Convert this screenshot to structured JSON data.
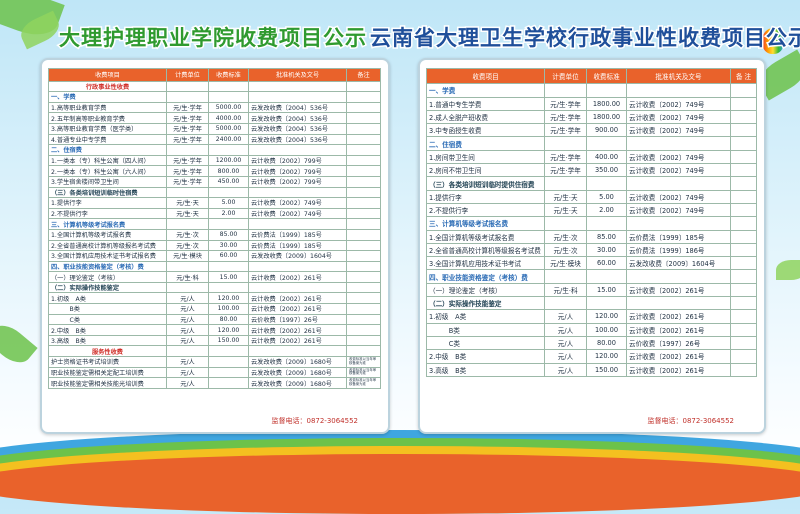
{
  "boards": [
    {
      "title": "大理护理职业学院收费项目公示",
      "header": [
        "收费项目",
        "计费单位",
        "收费标准",
        "批准机关及文号",
        "备注"
      ],
      "rows": [
        {
          "section": "行政事业性收费",
          "color": "#d0302a"
        },
        {
          "section": "一、学费",
          "color": "#2a6bb5"
        },
        {
          "item": "1.高等职业教育学费",
          "unit": "元/生·学年",
          "fee": "5000.00",
          "approval": "云发改收费〔2004〕536号"
        },
        {
          "item": "2.五年制高等职业教育学费",
          "unit": "元/生·学年",
          "fee": "4000.00",
          "approval": "云发改收费〔2004〕536号"
        },
        {
          "item": "3.高等职业教育学费（医学类）",
          "unit": "元/生·学年",
          "fee": "5000.00",
          "approval": "云发改收费〔2004〕536号"
        },
        {
          "item": "4.普通专业中专学费",
          "unit": "元/生·学年",
          "fee": "2400.00",
          "approval": "云发改收费〔2004〕536号"
        },
        {
          "section": "二、住宿费",
          "color": "#2a6bb5"
        },
        {
          "item": "1.一类本（专）科生公寓（四人间）",
          "unit": "元/生·学年",
          "fee": "1200.00",
          "approval": "云计收费〔2002〕799号"
        },
        {
          "item": "2.一类本（专）科生公寓（六人间）",
          "unit": "元/生·学年",
          "fee": "800.00",
          "approval": "云计收费〔2002〕799号"
        },
        {
          "item": "3.学生宿舍楼间带卫生间",
          "unit": "元/生·学年",
          "fee": "450.00",
          "approval": "云计收费〔2002〕799号"
        },
        {
          "section": "（三）各类培训短训临时住宿费",
          "color": "#234455"
        },
        {
          "item": "1.提供行李",
          "unit": "元/生·天",
          "fee": "5.00",
          "approval": "云计收费〔2002〕749号"
        },
        {
          "item": "2.不提供行李",
          "unit": "元/生·天",
          "fee": "2.00",
          "approval": "云计收费〔2002〕749号"
        },
        {
          "section": "三、计算机等级考试报名费",
          "color": "#2a6bb5"
        },
        {
          "item": "1.全国计算机等级考试报名费",
          "unit": "元/生·次",
          "fee": "85.00",
          "approval": "云价费法〔1999〕185号"
        },
        {
          "item": "2.全省普通高校计算机等级报名考试费",
          "unit": "元/生·次",
          "fee": "30.00",
          "approval": "云价费法〔1999〕185号"
        },
        {
          "item": "3.全国计算机应用技术证书考试报名费",
          "unit": "元/生·模块",
          "fee": "60.00",
          "approval": "云发改收费〔2009〕1604号"
        },
        {
          "section": "四、职业技能资格鉴定（考核）费",
          "color": "#2a6bb5"
        },
        {
          "item": "（一）理论鉴定（考核）",
          "unit": "元/生·科",
          "fee": "15.00",
          "approval": "云计收费〔2002〕261号"
        },
        {
          "section": "（二）实际操作技能鉴定",
          "color": "#234455"
        },
        {
          "item": "1.初级　A类",
          "unit": "元/人",
          "fee": "120.00",
          "approval": "云计收费〔2002〕261号"
        },
        {
          "item": "　　　B类",
          "unit": "元/人",
          "fee": "100.00",
          "approval": "云计收费〔2002〕261号"
        },
        {
          "item": "　　　C类",
          "unit": "元/人",
          "fee": "80.00",
          "approval": "云价收费〔1997〕26号"
        },
        {
          "item": "2.中级　B类",
          "unit": "元/人",
          "fee": "120.00",
          "approval": "云计收费〔2002〕261号"
        },
        {
          "item": "3.高级　B类",
          "unit": "元/人",
          "fee": "150.00",
          "approval": "云计收费〔2002〕261号"
        },
        {
          "section": "服务性收费",
          "color": "#d0302a"
        },
        {
          "item": "护士资格证书考试培训费",
          "unit": "元/人",
          "approval": "云发改收费〔2009〕1680号",
          "note": "收费标准以当年审核备案为准"
        },
        {
          "item": "职业技能鉴定需相关定配工培训费",
          "unit": "元/人",
          "approval": "云发改收费〔2009〕1680号",
          "note": "收费标准以当年审核备案为准"
        },
        {
          "item": "职业技能鉴定需相关技能光培训费",
          "unit": "元/人",
          "approval": "云发改收费〔2009〕1680号",
          "note": "收费标准以当年审核备案为准"
        }
      ],
      "footer": "监督电话：0872-3064552"
    },
    {
      "title": "云南省大理卫生学校行政事业性收费项目公示",
      "header": [
        "收费项目",
        "计费单位",
        "收费标准",
        "批准机关及文号",
        "备 注"
      ],
      "rows": [
        {
          "section": "一、学费",
          "color": "#2a6bb5"
        },
        {
          "item": "1.普通中专生学费",
          "unit": "元/生·学年",
          "fee": "1800.00",
          "approval": "云计收费〔2002〕749号"
        },
        {
          "item": "2.成人全脱产班收费",
          "unit": "元/生·学年",
          "fee": "1800.00",
          "approval": "云计收费〔2002〕749号"
        },
        {
          "item": "3.中专函授生收费",
          "unit": "元/生·学年",
          "fee": "900.00",
          "approval": "云计收费〔2002〕749号"
        },
        {
          "section": "二、住宿费",
          "color": "#2a6bb5"
        },
        {
          "item": "1.房间带卫生间",
          "unit": "元/生·学年",
          "fee": "400.00",
          "approval": "云计收费〔2002〕749号"
        },
        {
          "item": "2.房间不带卫生间",
          "unit": "元/生·学年",
          "fee": "350.00",
          "approval": "云计收费〔2002〕749号"
        },
        {
          "section": "（三）各类培训短训临时提供住宿费",
          "color": "#234455"
        },
        {
          "item": "1.提供行李",
          "unit": "元/生·天",
          "fee": "5.00",
          "approval": "云计收费〔2002〕749号"
        },
        {
          "item": "2.不提供行李",
          "unit": "元/生·天",
          "fee": "2.00",
          "approval": "云计收费〔2002〕749号"
        },
        {
          "section": "三、计算机等级考试报名费",
          "color": "#2a6bb5"
        },
        {
          "item": "1.全国计算机等级考试报名费",
          "unit": "元/生·次",
          "fee": "85.00",
          "approval": "云价费法〔1999〕185号"
        },
        {
          "item": "2.全省普通高校计算机等级报名考试费",
          "unit": "元/生·次",
          "fee": "30.00",
          "approval": "云价费法〔1999〕186号"
        },
        {
          "item": "3.全国计算机应用技术证书考试",
          "unit": "元/生·模块",
          "fee": "60.00",
          "approval": "云发改收费〔2009〕1604号"
        },
        {
          "section": "四、职业技能资格鉴定（考核）费",
          "color": "#2a6bb5"
        },
        {
          "item": "（一）理论鉴定（考核）",
          "unit": "元/生·科",
          "fee": "15.00",
          "approval": "云计收费〔2002〕261号"
        },
        {
          "section": "（二）实际操作技能鉴定",
          "color": "#234455"
        },
        {
          "item": "1.初级　A类",
          "unit": "元/人",
          "fee": "120.00",
          "approval": "云计收费〔2002〕261号"
        },
        {
          "item": "　　　B类",
          "unit": "元/人",
          "fee": "100.00",
          "approval": "云计收费〔2002〕261号"
        },
        {
          "item": "　　　C类",
          "unit": "元/人",
          "fee": "80.00",
          "approval": "云价收费〔1997〕26号"
        },
        {
          "item": "2.中级　B类",
          "unit": "元/人",
          "fee": "120.00",
          "approval": "云计收费〔2002〕261号"
        },
        {
          "item": "3.高级　B类",
          "unit": "元/人",
          "fee": "150.00",
          "approval": "云计收费〔2002〕261号"
        }
      ],
      "footer": "监督电话：0872-3064552"
    }
  ]
}
